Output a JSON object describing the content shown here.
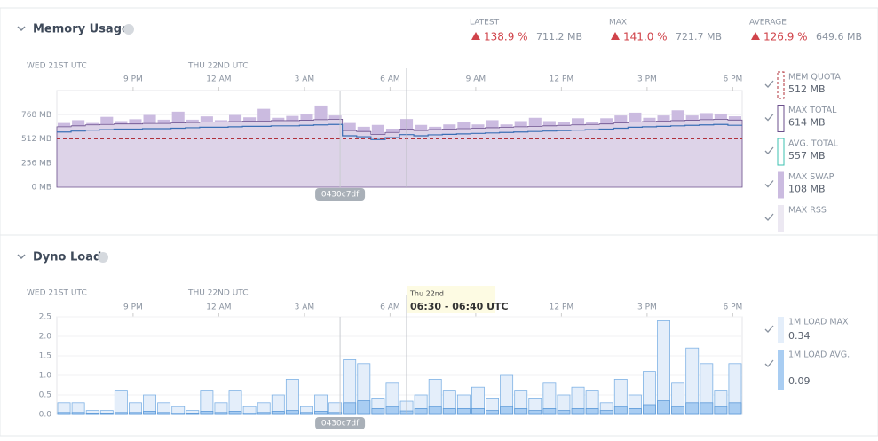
{
  "memory": {
    "title": "Memory Usage",
    "stats": [
      {
        "label": "LATEST",
        "percent": "138.9 %",
        "amount": "711.2 MB"
      },
      {
        "label": "MAX",
        "percent": "141.0 %",
        "amount": "721.7 MB"
      },
      {
        "label": "AVERAGE",
        "percent": "126.9 %",
        "amount": "649.6 MB"
      }
    ],
    "chart": {
      "type": "area",
      "day_labels": [
        "WED 21ST UTC",
        "THU 22ND UTC"
      ],
      "xlim": [
        0,
        24
      ],
      "xticks": [
        {
          "value": 2.67,
          "label": "9 PM"
        },
        {
          "value": 5.67,
          "label": "12 AM"
        },
        {
          "value": 8.67,
          "label": "3 AM"
        },
        {
          "value": 11.67,
          "label": "6 AM"
        },
        {
          "value": 14.67,
          "label": "9 AM"
        },
        {
          "value": 17.67,
          "label": "12 PM"
        },
        {
          "value": 20.67,
          "label": "3 PM"
        },
        {
          "value": 23.67,
          "label": "6 PM"
        }
      ],
      "ylim": [
        0,
        1024
      ],
      "yticks": [
        {
          "value": 0,
          "label": "0 MB"
        },
        {
          "value": 256,
          "label": "256 MB"
        },
        {
          "value": 512,
          "label": "512 MB"
        },
        {
          "value": 768,
          "label": "768 MB"
        }
      ],
      "x": [
        0,
        0.5,
        1,
        1.5,
        2,
        2.5,
        3,
        3.5,
        4,
        4.5,
        5,
        5.5,
        6,
        6.5,
        7,
        7.5,
        8,
        8.5,
        9,
        9.5,
        10,
        10.5,
        11,
        11.5,
        12,
        12.5,
        13,
        13.5,
        14,
        14.5,
        15,
        15.5,
        16,
        16.5,
        17,
        17.5,
        18,
        18.5,
        19,
        19.5,
        20,
        20.5,
        21,
        21.5,
        22,
        22.5,
        23,
        23.5
      ],
      "quota": {
        "name": "MEM QUOTA",
        "value": 512,
        "value_label": "512 MB",
        "color": "#b0303a"
      },
      "series": [
        {
          "name": "MAX TOTAL",
          "color": "#6b4f8c",
          "value_label": "614 MB",
          "values": [
            640,
            650,
            660,
            665,
            670,
            670,
            675,
            675,
            680,
            685,
            690,
            690,
            695,
            700,
            700,
            705,
            705,
            710,
            715,
            720,
            600,
            590,
            560,
            580,
            614,
            600,
            610,
            615,
            620,
            625,
            630,
            635,
            640,
            645,
            650,
            655,
            660,
            665,
            670,
            680,
            690,
            695,
            700,
            705,
            710,
            715,
            720,
            711
          ]
        },
        {
          "name": "AVG. TOTAL",
          "color": "#3a6fb5",
          "value_label": "557 MB",
          "values": [
            585,
            595,
            605,
            610,
            615,
            615,
            620,
            620,
            625,
            630,
            635,
            635,
            640,
            645,
            645,
            650,
            650,
            655,
            660,
            665,
            545,
            535,
            505,
            525,
            557,
            545,
            555,
            560,
            565,
            570,
            575,
            580,
            585,
            590,
            595,
            600,
            605,
            610,
            615,
            625,
            635,
            640,
            645,
            650,
            655,
            660,
            665,
            656
          ]
        },
        {
          "name": "MAX SWAP",
          "color": "#cbbbe0",
          "value_label": "108 MB",
          "values": [
            40,
            60,
            20,
            80,
            30,
            50,
            90,
            40,
            120,
            30,
            60,
            20,
            70,
            40,
            130,
            30,
            50,
            60,
            150,
            40,
            80,
            50,
            100,
            40,
            108,
            60,
            30,
            50,
            70,
            40,
            80,
            30,
            60,
            90,
            50,
            40,
            70,
            30,
            60,
            80,
            100,
            40,
            60,
            110,
            50,
            70,
            60,
            40
          ]
        },
        {
          "name": "MAX RSS",
          "color": "#ece8f2"
        }
      ],
      "release": {
        "label": "0430c7df",
        "x": 9.92
      },
      "cursor_x": 12.25
    }
  },
  "load": {
    "title": "Dyno Load",
    "chart": {
      "type": "bar",
      "day_labels": [
        "WED 21ST UTC",
        "THU 22ND UTC"
      ],
      "tooltip": {
        "day": "Thu 22nd",
        "range": "06:30 - 06:40 UTC"
      },
      "xlim": [
        0,
        24
      ],
      "xticks": [
        {
          "value": 2.67,
          "label": "9 PM"
        },
        {
          "value": 5.67,
          "label": "12 AM"
        },
        {
          "value": 8.67,
          "label": "3 AM"
        },
        {
          "value": 11.67,
          "label": "6 AM"
        },
        {
          "value": 14.67,
          "label": "9 AM"
        },
        {
          "value": 17.67,
          "label": "12 PM"
        },
        {
          "value": 20.67,
          "label": "3 PM"
        },
        {
          "value": 23.67,
          "label": "6 PM"
        }
      ],
      "ylim": [
        0,
        2.5
      ],
      "yticks": [
        {
          "value": 0,
          "label": "0.0"
        },
        0.5,
        {
          "value": 1,
          "label": "1.0"
        },
        1.5,
        {
          "value": 2,
          "label": "2.0"
        },
        2.5
      ],
      "x": [
        0,
        0.5,
        1,
        1.5,
        2,
        2.5,
        3,
        3.5,
        4,
        4.5,
        5,
        5.5,
        6,
        6.5,
        7,
        7.5,
        8,
        8.5,
        9,
        9.5,
        10,
        10.5,
        11,
        11.5,
        12,
        12.5,
        13,
        13.5,
        14,
        14.5,
        15,
        15.5,
        16,
        16.5,
        17,
        17.5,
        18,
        18.5,
        19,
        19.5,
        20,
        20.5,
        21,
        21.5,
        22,
        22.5,
        23,
        23.5
      ],
      "series": [
        {
          "name": "1M LOAD MAX",
          "color": "#e4eefa",
          "stroke": "#7fb2e5",
          "values": [
            0.3,
            0.3,
            0.1,
            0.1,
            0.6,
            0.3,
            0.5,
            0.3,
            0.2,
            0.1,
            0.6,
            0.3,
            0.6,
            0.2,
            0.3,
            0.5,
            0.9,
            0.2,
            0.5,
            0.3,
            1.4,
            1.3,
            0.4,
            0.8,
            0.34,
            0.5,
            0.9,
            0.6,
            0.5,
            0.7,
            0.4,
            1.0,
            0.6,
            0.4,
            0.8,
            0.5,
            0.7,
            0.6,
            0.3,
            0.9,
            0.5,
            1.1,
            2.4,
            0.8,
            1.7,
            1.3,
            0.6,
            1.3
          ]
        },
        {
          "name": "1M LOAD AVG.",
          "color": "#a9cdf2",
          "stroke": "#5d9ad8",
          "values": [
            0.05,
            0.05,
            0.02,
            0.02,
            0.05,
            0.05,
            0.08,
            0.05,
            0.03,
            0.02,
            0.08,
            0.05,
            0.08,
            0.03,
            0.05,
            0.08,
            0.1,
            0.05,
            0.08,
            0.05,
            0.3,
            0.35,
            0.15,
            0.2,
            0.09,
            0.15,
            0.2,
            0.15,
            0.15,
            0.15,
            0.1,
            0.2,
            0.15,
            0.1,
            0.15,
            0.1,
            0.15,
            0.15,
            0.1,
            0.2,
            0.15,
            0.25,
            0.35,
            0.2,
            0.3,
            0.3,
            0.2,
            0.3
          ]
        }
      ],
      "release": {
        "label": "0430c7df",
        "x": 9.92
      },
      "cursor_x": 12.25
    }
  }
}
